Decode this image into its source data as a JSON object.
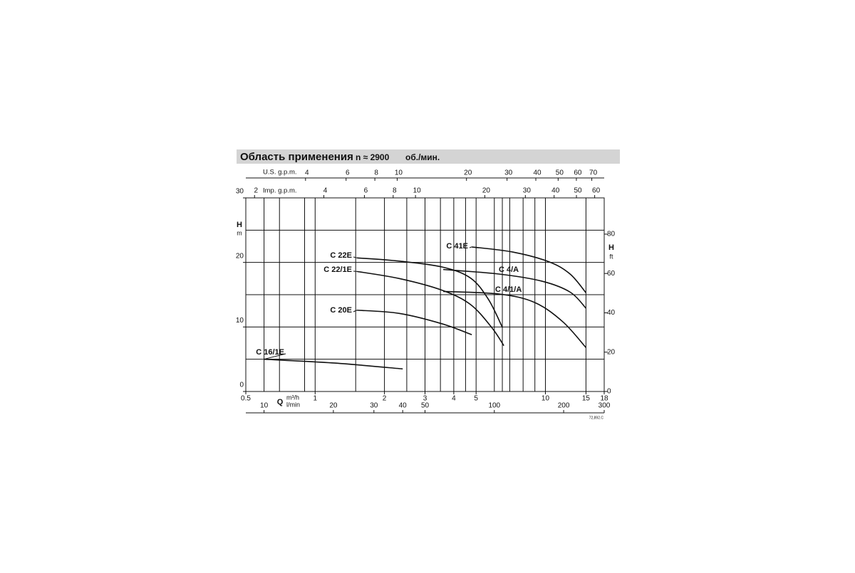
{
  "chart_data": {
    "type": "line",
    "title": "Область применения",
    "speed_label": "n ≈ 2900",
    "speed_unit": "об./мин.",
    "x_label": "Q",
    "x_unit": "m³/h",
    "x2_unit": "l/min",
    "x3_label": "U.S. g.p.m.",
    "x4_label": "Imp. g.p.m.",
    "y_label": "H",
    "y_unit": "m",
    "y2_label": "H",
    "y2_unit": "ft",
    "code": "72,892.C",
    "xscale": "log",
    "xlim": [
      0.5,
      18
    ],
    "xticks": [
      0.5,
      1,
      2,
      3,
      4,
      5,
      10,
      15,
      18
    ],
    "xgrid": [
      0.6,
      0.7,
      0.9,
      1,
      1.5,
      2,
      2.5,
      3,
      3.5,
      4,
      4.5,
      5,
      6,
      6.5,
      7,
      8,
      9,
      10,
      15
    ],
    "x2lim": [
      8.333,
      300
    ],
    "x2ticks": [
      10,
      20,
      30,
      40,
      50,
      100,
      200,
      300
    ],
    "x3lim": [
      2.2015,
      79.25
    ],
    "x3ticks": [
      4,
      6,
      8,
      10,
      20,
      30,
      40,
      50,
      60,
      70
    ],
    "x4lim": [
      1.833,
      66
    ],
    "x4ticks": [
      2,
      4,
      6,
      8,
      10,
      20,
      30,
      40,
      50,
      60
    ],
    "ylim": [
      0,
      30
    ],
    "yticks": [
      0,
      10,
      20,
      30
    ],
    "ygrid": [
      5,
      10,
      15,
      20,
      25
    ],
    "y2lim": [
      0,
      98.43
    ],
    "y2ticks": [
      0,
      20,
      40,
      60,
      80
    ],
    "series": [
      {
        "name": "C 22E",
        "color": "#111111",
        "x": [
          1.52,
          2.32,
          3.55,
          4.72,
          5.65,
          6.51
        ],
        "values": [
          20.7,
          20.2,
          19.3,
          17.6,
          14.3,
          9.9
        ]
      },
      {
        "name": "C 22/1E",
        "color": "#111111",
        "x": [
          1.52,
          2.32,
          3.55,
          4.72,
          5.85,
          6.6
        ],
        "values": [
          18.6,
          17.5,
          15.7,
          13.5,
          9.9,
          7.1
        ]
      },
      {
        "name": "C 20E",
        "color": "#111111",
        "x": [
          1.52,
          2.32,
          3.55,
          4.79
        ],
        "values": [
          12.6,
          12.1,
          10.5,
          8.8
        ]
      },
      {
        "name": "C 16/1E",
        "color": "#111111",
        "x": [
          0.6,
          1.22,
          2.4
        ],
        "values": [
          5.0,
          4.4,
          3.5
        ]
      },
      {
        "name": "C 41E",
        "color": "#111111",
        "x": [
          4.79,
          7.24,
          10.35,
          12.8,
          15
        ],
        "values": [
          22.4,
          21.6,
          20.1,
          18.2,
          15.3
        ]
      },
      {
        "name": "C 4/A",
        "color": "#111111",
        "x": [
          3.6,
          6.28,
          9.64,
          12.8,
          15
        ],
        "values": [
          18.9,
          18.2,
          17.1,
          15.4,
          12.9
        ]
      },
      {
        "name": "C 4/1/A",
        "color": "#111111",
        "x": [
          3.6,
          6.28,
          8.97,
          11.9,
          15
        ],
        "values": [
          15.5,
          15.1,
          13.8,
          10.8,
          6.8
        ]
      }
    ]
  }
}
